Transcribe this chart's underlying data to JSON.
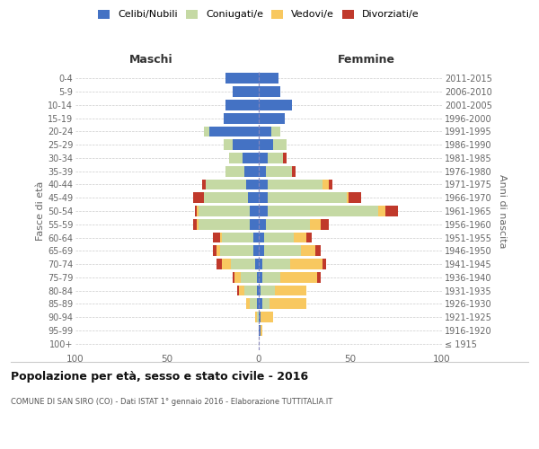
{
  "age_groups": [
    "100+",
    "95-99",
    "90-94",
    "85-89",
    "80-84",
    "75-79",
    "70-74",
    "65-69",
    "60-64",
    "55-59",
    "50-54",
    "45-49",
    "40-44",
    "35-39",
    "30-34",
    "25-29",
    "20-24",
    "15-19",
    "10-14",
    "5-9",
    "0-4"
  ],
  "birth_years": [
    "≤ 1915",
    "1916-1920",
    "1921-1925",
    "1926-1930",
    "1931-1935",
    "1936-1940",
    "1941-1945",
    "1946-1950",
    "1951-1955",
    "1956-1960",
    "1961-1965",
    "1966-1970",
    "1971-1975",
    "1976-1980",
    "1981-1985",
    "1986-1990",
    "1991-1995",
    "1996-2000",
    "2001-2005",
    "2006-2010",
    "2011-2015"
  ],
  "colors": {
    "celibi": "#4472C4",
    "coniugati": "#C5D9A4",
    "vedovi": "#F8C860",
    "divorziati": "#C0392B"
  },
  "maschi": {
    "celibi": [
      0,
      0,
      0,
      1,
      1,
      1,
      2,
      3,
      3,
      5,
      5,
      6,
      7,
      8,
      9,
      14,
      27,
      19,
      18,
      14,
      18
    ],
    "coniugati": [
      0,
      0,
      1,
      4,
      7,
      9,
      13,
      18,
      17,
      28,
      28,
      24,
      22,
      10,
      7,
      5,
      3,
      0,
      0,
      0,
      0
    ],
    "vedovi": [
      0,
      0,
      1,
      2,
      3,
      3,
      5,
      2,
      1,
      1,
      1,
      0,
      0,
      0,
      0,
      0,
      0,
      0,
      0,
      0,
      0
    ],
    "divorziati": [
      0,
      0,
      0,
      0,
      1,
      1,
      3,
      2,
      4,
      2,
      1,
      6,
      2,
      0,
      0,
      0,
      0,
      0,
      0,
      0,
      0
    ]
  },
  "femmine": {
    "nubili": [
      0,
      1,
      1,
      2,
      1,
      2,
      2,
      3,
      3,
      4,
      5,
      5,
      5,
      4,
      5,
      8,
      7,
      14,
      18,
      12,
      11
    ],
    "coniugate": [
      0,
      0,
      0,
      4,
      8,
      10,
      15,
      20,
      16,
      24,
      60,
      43,
      30,
      14,
      8,
      7,
      5,
      0,
      0,
      0,
      0
    ],
    "vedove": [
      0,
      1,
      7,
      20,
      17,
      20,
      18,
      8,
      7,
      6,
      4,
      1,
      3,
      0,
      0,
      0,
      0,
      0,
      0,
      0,
      0
    ],
    "divorziate": [
      0,
      0,
      0,
      0,
      0,
      2,
      2,
      3,
      3,
      4,
      7,
      7,
      2,
      2,
      2,
      0,
      0,
      0,
      0,
      0,
      0
    ]
  },
  "xlim": 100,
  "title": "Popolazione per età, sesso e stato civile - 2016",
  "subtitle": "COMUNE DI SAN SIRO (CO) - Dati ISTAT 1° gennaio 2016 - Elaborazione TUTTITALIA.IT",
  "ylabel_left": "Fasce di età",
  "ylabel_right": "Anni di nascita",
  "header_maschi": "Maschi",
  "header_femmine": "Femmine",
  "legend_labels": [
    "Celibi/Nubili",
    "Coniugati/e",
    "Vedovi/e",
    "Divorziati/e"
  ],
  "bg_color": "#ffffff",
  "grid_color": "#cccccc"
}
